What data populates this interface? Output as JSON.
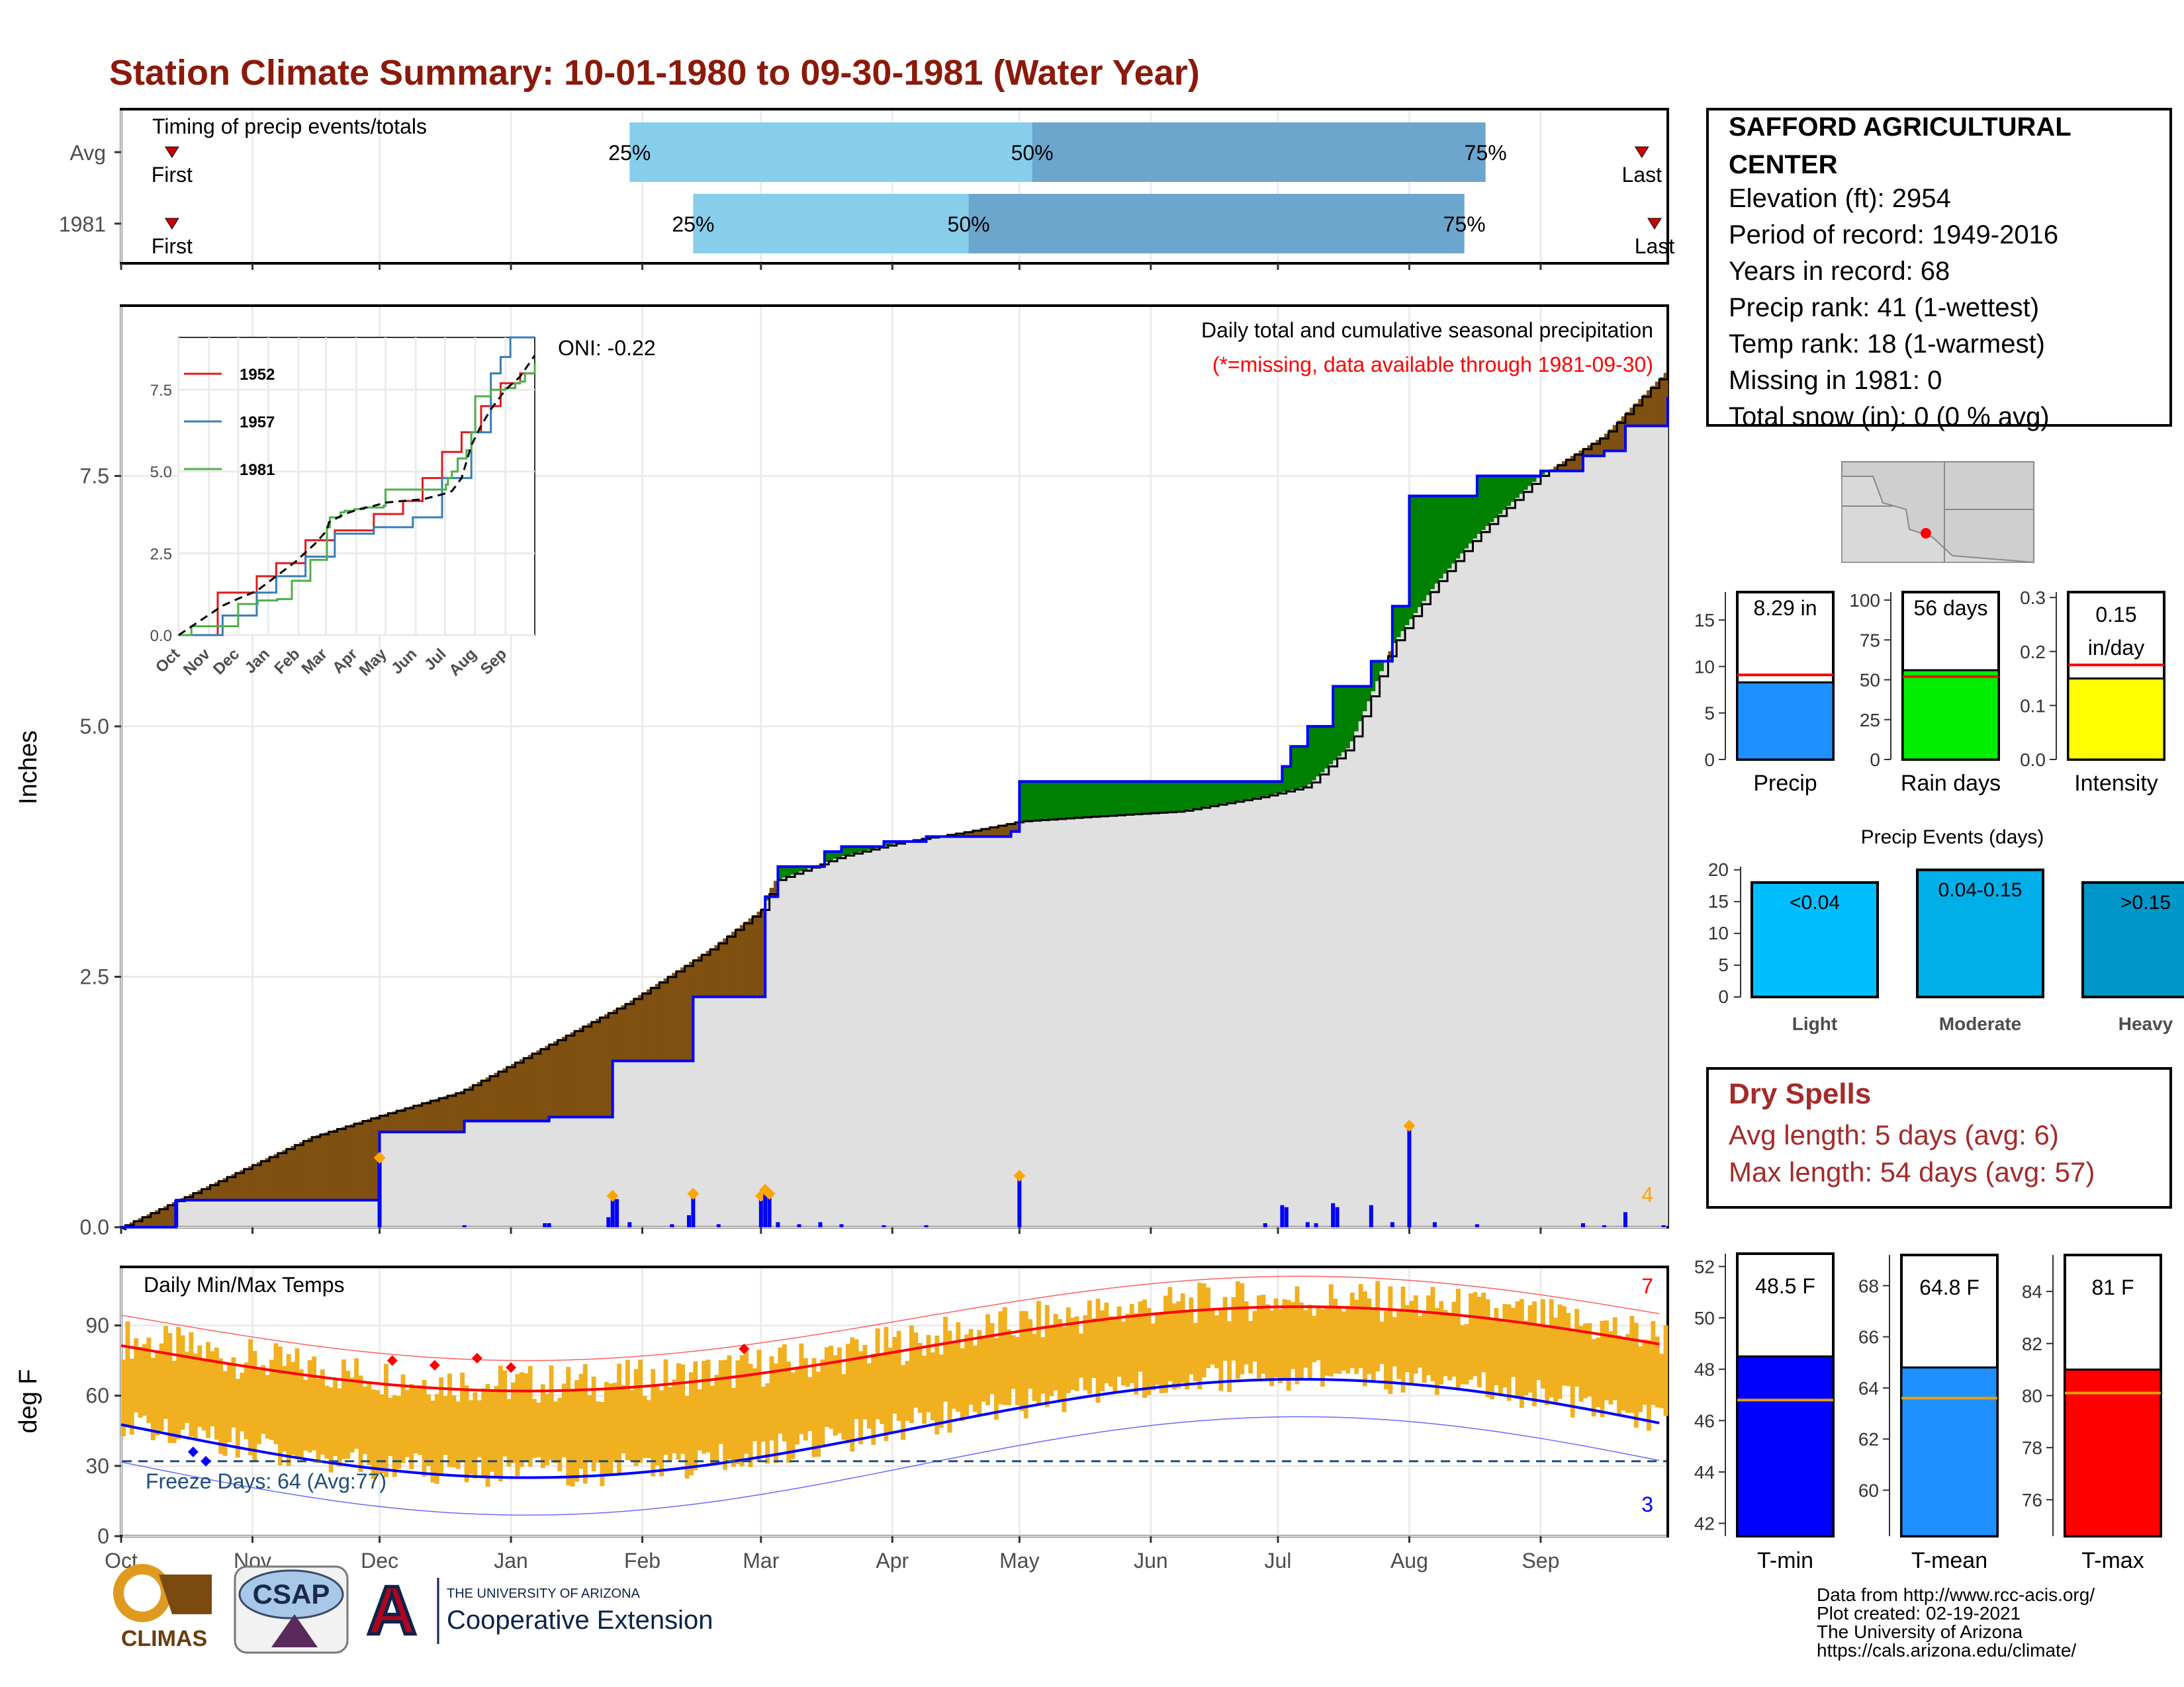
{
  "title": "Station Climate Summary: 10-01-1980 to 09-30-1981 (Water Year)",
  "timing": {
    "label": "Timing of precip events/totals",
    "rows": [
      {
        "name": "Avg",
        "first": "First",
        "last": "Last",
        "p25": "25%",
        "p50": "50%",
        "p75": "75%",
        "first_day": 12,
        "p25_day": 120,
        "p50_day": 215,
        "p75_day": 322,
        "last_day": 362
      },
      {
        "name": "1981",
        "first": "First",
        "last": "Last",
        "p25": "25%",
        "p50": "50%",
        "p75": "75%",
        "first_day": 12,
        "p25_day": 135,
        "p50_day": 200,
        "p75_day": 317,
        "last_day": 365
      }
    ]
  },
  "months": [
    "Oct",
    "Nov",
    "Dec",
    "Jan",
    "Feb",
    "Mar",
    "Apr",
    "May",
    "Jun",
    "Jul",
    "Aug",
    "Sep"
  ],
  "precip": {
    "ylabel": "Inches",
    "yticks": [
      "0.0",
      "2.5",
      "5.0",
      "7.5"
    ],
    "caption": "Daily total and cumulative seasonal precipitation",
    "missing_note": "(*=missing, data available through 1981-09-30)",
    "oni": "ONI: -0.22",
    "count_label": "4"
  },
  "inset": {
    "yticks": [
      "0.0",
      "2.5",
      "5.0",
      "7.5"
    ],
    "months": [
      "Oct",
      "Nov",
      "Dec",
      "Jan",
      "Feb",
      "Mar",
      "Apr",
      "May",
      "Jun",
      "Jul",
      "Aug",
      "Sep"
    ],
    "legend": [
      {
        "name": "1952",
        "color": "#e41a1c"
      },
      {
        "name": "1957",
        "color": "#377eb8"
      },
      {
        "name": "1981",
        "color": "#4daf4a"
      }
    ]
  },
  "temps": {
    "label": "Daily Min/Max Temps",
    "ylabel": "deg F",
    "yticks": [
      "0",
      "30",
      "60",
      "90"
    ],
    "freeze": "Freeze Days: 64 (Avg:77)",
    "max_count": "7",
    "min_count": "3"
  },
  "station": {
    "name_line1": "SAFFORD AGRICULTURAL",
    "name_line2": "CENTER",
    "lines": [
      "Elevation (ft): 2954",
      "Period of record: 1949-2016",
      "Years in record: 68",
      "Precip rank: 41 (1-wettest)",
      "Temp rank: 18 (1-warmest)",
      "Missing in 1981: 0",
      "Total snow (in): 0 (0 % avg)"
    ]
  },
  "minibars": [
    {
      "label": "Precip",
      "value_text": "8.29 in",
      "value": 8.29,
      "avg": 9.1,
      "max": 18,
      "ticks": [
        "0",
        "5",
        "10",
        "15"
      ],
      "tickvals": [
        0,
        5,
        10,
        15
      ],
      "color": "#1e90ff"
    },
    {
      "label": "Rain days",
      "value_text": "56 days",
      "value": 56,
      "avg": 52,
      "max": 105,
      "ticks": [
        "0",
        "25",
        "50",
        "75",
        "100"
      ],
      "tickvals": [
        0,
        25,
        50,
        75,
        100
      ],
      "color": "#00ee00"
    },
    {
      "label": "Intensity",
      "value_text": "0.15",
      "value_text2": "in/day",
      "value": 0.15,
      "avg": 0.175,
      "max": 0.31,
      "ticks": [
        "0.0",
        "0.1",
        "0.2",
        "0.3"
      ],
      "tickvals": [
        0,
        0.1,
        0.2,
        0.3
      ],
      "color": "#ffff00"
    }
  ],
  "events": {
    "title": "Precip Events (days)",
    "ticks": [
      "0",
      "5",
      "10",
      "15",
      "20"
    ],
    "bars": [
      {
        "label": "Light",
        "value_text": "<0.04",
        "value": 18,
        "color": "#00bfff"
      },
      {
        "label": "Moderate",
        "value_text": "0.04-0.15",
        "value": 20,
        "color": "#00aee8"
      },
      {
        "label": "Heavy",
        "value_text": ">0.15",
        "value": 18,
        "color": "#0096c8"
      }
    ]
  },
  "dryspells": {
    "title": "Dry Spells",
    "avg": "Avg length: 5 days (avg: 6)",
    "max": "Max length: 54 days (avg: 57)"
  },
  "tempbars": [
    {
      "label": "T-min",
      "value_text": "48.5 F",
      "value": 48.5,
      "avg": 46.8,
      "min": 41.5,
      "max": 52.5,
      "ticks": [
        "42",
        "44",
        "46",
        "48",
        "50",
        "52"
      ],
      "tickvals": [
        42,
        44,
        46,
        48,
        50,
        52
      ],
      "color": "#0000ff"
    },
    {
      "label": "T-mean",
      "value_text": "64.8 F",
      "value": 64.8,
      "avg": 63.6,
      "min": 58.2,
      "max": 69.2,
      "ticks": [
        "60",
        "62",
        "64",
        "66",
        "68"
      ],
      "tickvals": [
        60,
        62,
        64,
        66,
        68
      ],
      "color": "#1e90ff"
    },
    {
      "label": "T-max",
      "value_text": "81 F",
      "value": 81,
      "avg": 80.1,
      "min": 74.6,
      "max": 85.4,
      "ticks": [
        "76",
        "78",
        "80",
        "82",
        "84"
      ],
      "tickvals": [
        76,
        78,
        80,
        82,
        84
      ],
      "color": "#ff0000"
    }
  ],
  "footer": {
    "lines": [
      "Data from http://www.rcc-acis.org/",
      "Plot created: 02-19-2021",
      "The University of Arizona",
      "https://cals.arizona.edu/climate/"
    ],
    "climas": "CLIMAS",
    "csap": "CSAP",
    "uofa_small": "THE UNIVERSITY OF ARIZONA",
    "uofa_big": "Cooperative Extension",
    "uofa_letter": "A"
  },
  "chart_data": {
    "type": "area",
    "x_units": "day of water year (Oct 1 = 0)",
    "y_units": "inches",
    "ylim": [
      0,
      9.2
    ],
    "cumulative_1981": [
      [
        0,
        0
      ],
      [
        12,
        0
      ],
      [
        13,
        0.27
      ],
      [
        30,
        0.27
      ],
      [
        60,
        0.27
      ],
      [
        61,
        0.95
      ],
      [
        80,
        0.95
      ],
      [
        81,
        1.06
      ],
      [
        100,
        1.06
      ],
      [
        101,
        1.1
      ],
      [
        115,
        1.1
      ],
      [
        116,
        1.66
      ],
      [
        134,
        1.66
      ],
      [
        135,
        2.3
      ],
      [
        151,
        2.3
      ],
      [
        152,
        3.3
      ],
      [
        155,
        3.6
      ],
      [
        165,
        3.6
      ],
      [
        166,
        3.75
      ],
      [
        170,
        3.8
      ],
      [
        180,
        3.85
      ],
      [
        190,
        3.9
      ],
      [
        210,
        3.95
      ],
      [
        212,
        4.45
      ],
      [
        240,
        4.45
      ],
      [
        273,
        4.45
      ],
      [
        274,
        4.6
      ],
      [
        276,
        4.8
      ],
      [
        280,
        5.0
      ],
      [
        286,
        5.4
      ],
      [
        295,
        5.65
      ],
      [
        300,
        6.2
      ],
      [
        304,
        7.3
      ],
      [
        320,
        7.5
      ],
      [
        335,
        7.55
      ],
      [
        345,
        7.7
      ],
      [
        350,
        7.75
      ],
      [
        355,
        8.0
      ],
      [
        365,
        8.29
      ]
    ],
    "cumulative_avg": [
      [
        0,
        0
      ],
      [
        10,
        0.2
      ],
      [
        30,
        0.6
      ],
      [
        45,
        0.9
      ],
      [
        60,
        1.1
      ],
      [
        80,
        1.35
      ],
      [
        100,
        1.8
      ],
      [
        120,
        2.25
      ],
      [
        140,
        2.8
      ],
      [
        152,
        3.2
      ],
      [
        154,
        3.45
      ],
      [
        170,
        3.7
      ],
      [
        185,
        3.85
      ],
      [
        200,
        3.95
      ],
      [
        212,
        4.05
      ],
      [
        230,
        4.1
      ],
      [
        250,
        4.15
      ],
      [
        270,
        4.3
      ],
      [
        280,
        4.4
      ],
      [
        290,
        4.8
      ],
      [
        300,
        5.8
      ],
      [
        310,
        6.4
      ],
      [
        320,
        6.9
      ],
      [
        335,
        7.5
      ],
      [
        350,
        7.9
      ],
      [
        365,
        8.55
      ]
    ],
    "daily_1981": [
      [
        13,
        0.27
      ],
      [
        61,
        0.68
      ],
      [
        81,
        0.02
      ],
      [
        100,
        0.04
      ],
      [
        101,
        0.04
      ],
      [
        115,
        0.1
      ],
      [
        116,
        0.3
      ],
      [
        117,
        0.28
      ],
      [
        120,
        0.05
      ],
      [
        130,
        0.03
      ],
      [
        134,
        0.12
      ],
      [
        135,
        0.32
      ],
      [
        141,
        0.03
      ],
      [
        151,
        0.3
      ],
      [
        152,
        0.36
      ],
      [
        153,
        0.32
      ],
      [
        155,
        0.05
      ],
      [
        160,
        0.03
      ],
      [
        165,
        0.05
      ],
      [
        170,
        0.03
      ],
      [
        180,
        0.02
      ],
      [
        190,
        0.02
      ],
      [
        212,
        0.5
      ],
      [
        270,
        0.04
      ],
      [
        274,
        0.22
      ],
      [
        275,
        0.2
      ],
      [
        280,
        0.05
      ],
      [
        282,
        0.04
      ],
      [
        286,
        0.24
      ],
      [
        287,
        0.2
      ],
      [
        295,
        0.22
      ],
      [
        300,
        0.05
      ],
      [
        304,
        1.0
      ],
      [
        310,
        0.05
      ],
      [
        320,
        0.03
      ],
      [
        345,
        0.04
      ],
      [
        350,
        0.02
      ],
      [
        355,
        0.15
      ],
      [
        364,
        0.02
      ]
    ],
    "title": "Station Climate Summary: 10-01-1980 to 09-30-1981 (Water Year)",
    "ylabel": "Inches"
  }
}
